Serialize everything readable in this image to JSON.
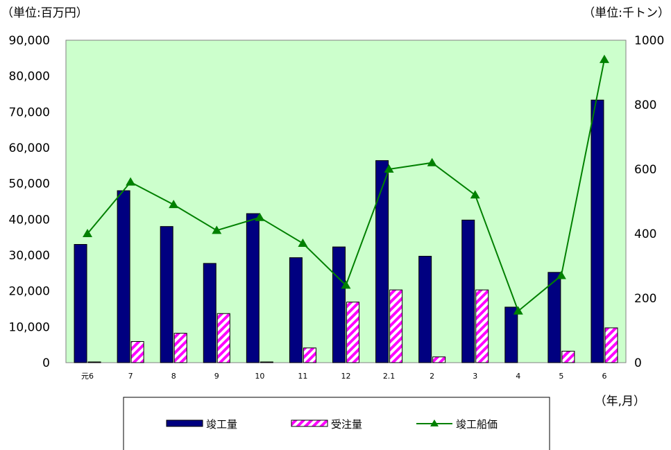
{
  "chart_data": {
    "type": "bar",
    "categories": [
      "元6",
      "7",
      "8",
      "9",
      "10",
      "11",
      "12",
      "2.1",
      "2",
      "3",
      "4",
      "5",
      "6"
    ],
    "series": [
      {
        "name": "竣工量",
        "type": "bar",
        "axis": "left",
        "color": "#000080",
        "values": [
          33000,
          48000,
          38000,
          27700,
          41600,
          29300,
          32300,
          56400,
          29700,
          39800,
          15500,
          25200,
          73300
        ]
      },
      {
        "name": "受注量",
        "type": "bar",
        "axis": "left",
        "pattern": "hatched",
        "color": "#ff00ff",
        "values": [
          200,
          5900,
          8200,
          13700,
          200,
          4100,
          16900,
          20300,
          1600,
          20300,
          0,
          3200,
          9700
        ]
      },
      {
        "name": "竣工船価",
        "type": "line",
        "axis": "right",
        "marker": "triangle",
        "color": "#008000",
        "values": [
          400,
          560,
          490,
          410,
          450,
          370,
          240,
          600,
          620,
          520,
          160,
          270,
          940
        ]
      }
    ],
    "y_left": {
      "unit_label": "（単位:百万円）",
      "min": 0,
      "max": 90000,
      "ticks": [
        "0",
        "10,000",
        "20,000",
        "30,000",
        "40,000",
        "50,000",
        "60,000",
        "70,000",
        "80,000",
        "90,000"
      ]
    },
    "y_right": {
      "unit_label": "（単位:千トン）",
      "min": 0,
      "max": 1000,
      "ticks": [
        "0",
        "200",
        "400",
        "600",
        "800",
        "1000"
      ]
    },
    "x_unit_label": "（年,月）",
    "legend_position": "bottom-center",
    "plot_background": "#ccffcc",
    "grid": false
  }
}
